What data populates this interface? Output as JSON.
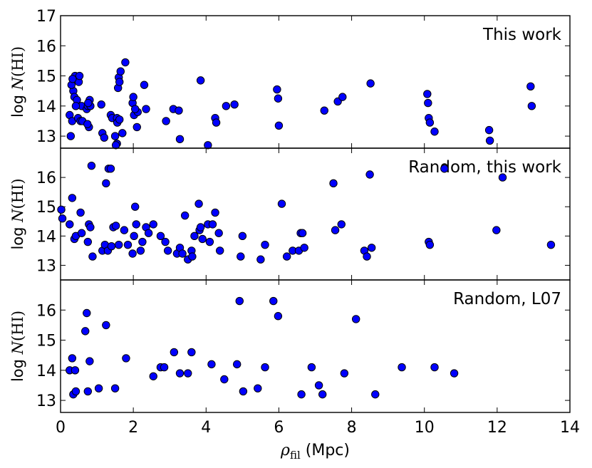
{
  "colors": {
    "marker": "#0000ff",
    "marker_edge": "#000000",
    "axes": "#000000",
    "background": "#ffffff"
  },
  "chart_data": {
    "type": "scatter",
    "layout": "3 vertically stacked panels with shared x axis",
    "xlabel": {
      "symbol": "ρ",
      "subscript": "fil",
      "unit": " (Mpc)"
    },
    "xlim": [
      0,
      14
    ],
    "xticks": [
      0,
      2,
      4,
      6,
      8,
      10,
      12,
      14
    ],
    "grid": false,
    "panels": [
      {
        "title": "This work",
        "ylabel": {
          "prefix": "log ",
          "symbol": "N",
          "suffix": "(HI)"
        },
        "ylim": [
          12.6,
          17
        ],
        "yticks": [
          13,
          14,
          15,
          16,
          17
        ],
        "x": [
          0.25,
          0.28,
          0.32,
          0.35,
          0.38,
          0.4,
          0.45,
          0.48,
          0.5,
          0.52,
          0.55,
          0.58,
          0.3,
          0.33,
          0.42,
          0.6,
          0.72,
          0.75,
          0.78,
          0.8,
          0.82,
          0.76,
          0.74,
          1.12,
          1.15,
          1.2,
          1.38,
          1.42,
          1.5,
          1.55,
          1.58,
          1.6,
          1.62,
          1.55,
          1.52,
          1.56,
          1.65,
          1.7,
          1.78,
          1.62,
          1.98,
          2.0,
          2.02,
          2.1,
          2.12,
          2.05,
          2.3,
          2.35,
          2.9,
          3.1,
          3.25,
          3.28,
          3.85,
          4.05,
          4.25,
          4.28,
          4.55,
          4.78,
          5.95,
          5.98,
          6.0,
          7.25,
          7.62,
          7.75,
          8.52,
          10.08,
          10.1,
          10.12,
          10.15,
          10.28,
          11.78,
          11.8,
          12.92,
          12.95
        ],
        "y": [
          13.7,
          13.0,
          13.5,
          14.5,
          14.3,
          15.0,
          14.2,
          13.6,
          14.8,
          15.0,
          13.5,
          14.0,
          14.7,
          14.9,
          14.0,
          13.5,
          13.9,
          14.0,
          13.3,
          14.2,
          14.0,
          14.1,
          13.4,
          14.05,
          13.1,
          12.95,
          13.7,
          13.6,
          13.0,
          13.6,
          14.6,
          14.95,
          14.8,
          12.75,
          12.7,
          13.45,
          15.15,
          13.1,
          15.45,
          13.55,
          14.1,
          14.3,
          13.7,
          13.3,
          13.8,
          13.9,
          14.7,
          13.9,
          13.5,
          13.9,
          13.85,
          12.9,
          14.85,
          12.7,
          13.6,
          13.45,
          14.0,
          14.05,
          14.55,
          14.25,
          13.35,
          13.85,
          14.15,
          14.3,
          14.75,
          14.4,
          14.1,
          13.6,
          13.45,
          13.15,
          13.2,
          12.85,
          14.65,
          14.0
        ]
      },
      {
        "title": "Random, this work",
        "ylabel": {
          "prefix": "log ",
          "symbol": "N",
          "suffix": "(HI)"
        },
        "ylim": [
          12.5,
          17
        ],
        "yticks": [
          13,
          14,
          15,
          16
        ],
        "x": [
          0.02,
          0.05,
          0.25,
          0.32,
          0.38,
          0.42,
          0.55,
          0.58,
          0.75,
          0.78,
          0.85,
          0.82,
          0.88,
          1.15,
          1.22,
          1.25,
          1.3,
          1.32,
          1.38,
          1.4,
          1.45,
          1.52,
          1.6,
          1.75,
          1.85,
          1.98,
          2.02,
          2.05,
          2.08,
          2.2,
          2.25,
          2.35,
          2.42,
          2.55,
          2.75,
          2.88,
          2.95,
          3.2,
          3.28,
          3.35,
          3.42,
          3.5,
          3.6,
          3.62,
          3.68,
          3.8,
          3.82,
          3.85,
          3.9,
          4.05,
          4.1,
          4.18,
          4.25,
          4.35,
          4.38,
          4.95,
          5.0,
          5.5,
          5.62,
          6.08,
          6.22,
          6.38,
          6.55,
          6.6,
          6.65,
          6.7,
          7.5,
          7.55,
          7.72,
          8.35,
          8.42,
          8.5,
          8.55,
          10.12,
          10.15,
          10.55,
          11.98,
          12.15,
          13.48
        ],
        "y": [
          14.9,
          14.6,
          14.4,
          15.3,
          13.9,
          14.0,
          14.8,
          14.1,
          13.8,
          14.4,
          16.4,
          14.3,
          13.3,
          13.5,
          13.7,
          15.8,
          13.5,
          16.3,
          16.3,
          13.65,
          14.3,
          14.35,
          13.7,
          14.2,
          13.7,
          13.4,
          14.0,
          15.0,
          14.4,
          13.5,
          13.8,
          14.3,
          14.1,
          14.4,
          14.0,
          13.8,
          13.5,
          13.4,
          13.6,
          13.4,
          14.7,
          13.2,
          13.5,
          13.3,
          14.0,
          15.1,
          14.2,
          14.3,
          13.9,
          14.4,
          13.8,
          14.4,
          14.8,
          14.1,
          13.5,
          13.3,
          14.0,
          13.2,
          13.7,
          15.1,
          13.3,
          13.5,
          13.5,
          14.1,
          14.1,
          13.6,
          15.8,
          14.2,
          14.4,
          13.5,
          13.3,
          16.1,
          13.6,
          13.8,
          13.7,
          16.3,
          14.2,
          16.0,
          13.7
        ]
      },
      {
        "title": "Random, L07",
        "ylabel": {
          "prefix": "log ",
          "symbol": "N",
          "suffix": "(HI)"
        },
        "ylim": [
          12.6,
          17
        ],
        "yticks": [
          13,
          14,
          15,
          16
        ],
        "x": [
          0.25,
          0.32,
          0.35,
          0.4,
          0.42,
          0.68,
          0.72,
          0.75,
          0.8,
          1.05,
          1.25,
          1.5,
          1.8,
          2.55,
          2.75,
          2.85,
          3.12,
          3.28,
          3.5,
          3.6,
          4.15,
          4.5,
          4.85,
          4.92,
          5.02,
          5.42,
          5.62,
          5.85,
          5.98,
          6.62,
          6.9,
          7.1,
          7.2,
          7.8,
          8.12,
          8.65,
          9.38,
          10.28,
          10.82
        ],
        "y": [
          14.0,
          14.4,
          13.2,
          14.0,
          13.3,
          15.3,
          15.9,
          13.3,
          14.3,
          13.4,
          15.5,
          13.4,
          14.4,
          13.8,
          14.1,
          14.1,
          14.6,
          13.9,
          13.9,
          14.6,
          14.2,
          13.7,
          14.2,
          16.3,
          13.3,
          13.4,
          14.1,
          16.3,
          15.8,
          13.2,
          14.1,
          13.5,
          13.2,
          13.9,
          15.7,
          13.2,
          14.1,
          14.1,
          13.9
        ]
      }
    ]
  }
}
